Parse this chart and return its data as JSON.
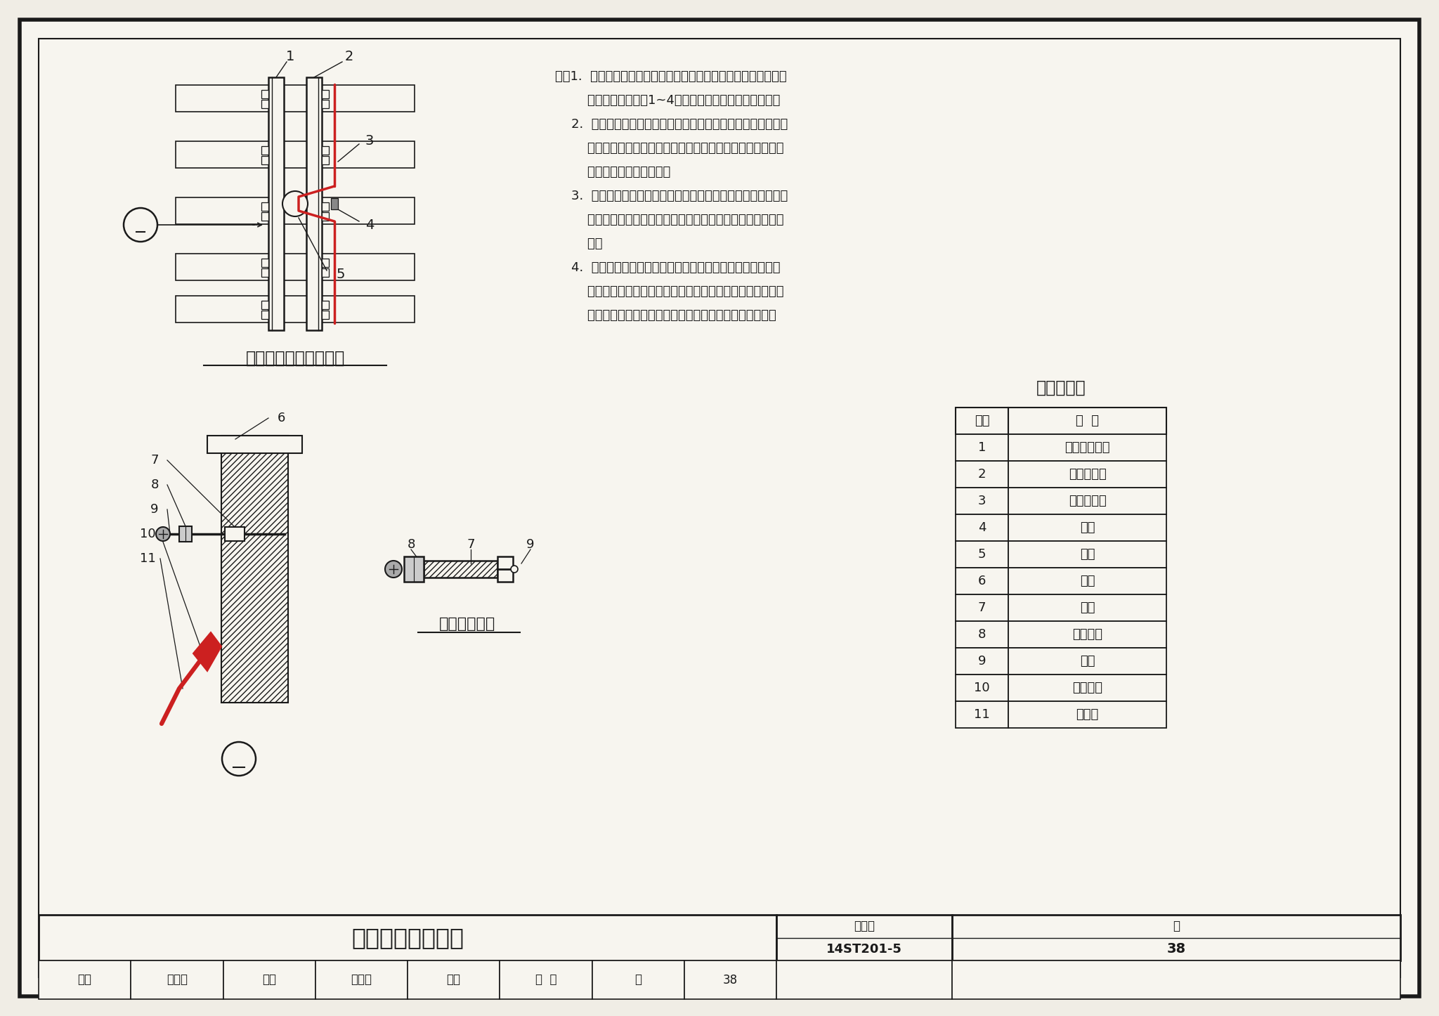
{
  "bg_color": "#f0ede5",
  "paper_color": "#f7f5ef",
  "line_color": "#1a1a1a",
  "red_color": "#cc2020",
  "title_main": "钢轨接续线安装图",
  "title_top_view": "钢轨接续线安装俯视图",
  "title_bolt_view": "胀钉正立面图",
  "ref_table_title": "名称对照表",
  "table_col1": "序号",
  "table_col2": "名  称",
  "table_rows": [
    [
      "1",
      "非牵引回流轨"
    ],
    [
      "2",
      "牵引回流轨"
    ],
    [
      "3",
      "钢轨接续线"
    ],
    [
      "4",
      "卡子"
    ],
    [
      "5",
      "轨缝"
    ],
    [
      "6",
      "钢轨"
    ],
    [
      "7",
      "胀管"
    ],
    [
      "8",
      "防松螺母"
    ],
    [
      "9",
      "胀钉"
    ],
    [
      "10",
      "压接端子"
    ],
    [
      "11",
      "接续线"
    ]
  ],
  "note_lines": [
    "注：1.  钢轨塞钉孔不得锈蚀，塞钉锚接牢固并不得弯曲，塞钉露出",
    "        钢轨侧面长度应为1~4，塞钉与塞钉孔缘应涂漆封闭。",
    "    2.  有牵引电流通过的钢轨，接续线连接采用胀钉方式、塞钉方",
    "        式或焊接方式（目前多采用胀钉式），接续线为多股铜线，",
    "        其截面积符合设计要求。",
    "    3.  钢轨接续线应安装在钢轨外侧，在道岔撤叉跟部或其他安装",
    "        困难处，塞钉式钢轨接续线及胀钉式接续线可安装在钢轨内",
    "        侧。",
    "    4.  塞钉式钢轨接续线应紧贴钢轨鱼尾夹板上部装平直、无弯",
    "        曲；胀钉式钢轨接续线沿钢轨底边敷设安装；焊接式钢轨接",
    "        续线应在钢轨鱼尾夹板的两侧焊接牢固，并呈弧形下垂。"
  ],
  "atlas_no": "14ST201-5",
  "page_no": "38",
  "footer_labels": [
    "审核",
    "高玉起",
    "校对",
    "张晓披",
    "设计",
    "王  桢",
    "页",
    "38"
  ]
}
